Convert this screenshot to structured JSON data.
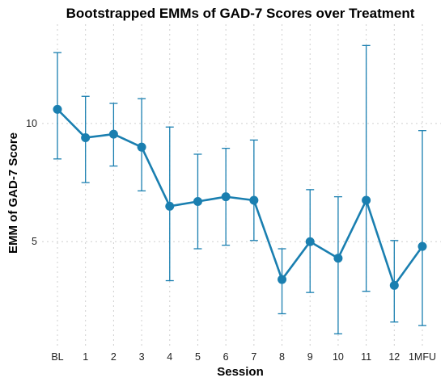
{
  "chart_data": {
    "type": "line",
    "title": "Bootstrapped EMMs of GAD-7 Scores over Treatment",
    "xlabel": "Session",
    "ylabel": "EMM of GAD-7 Score",
    "categories": [
      "BL",
      "1",
      "2",
      "3",
      "4",
      "5",
      "6",
      "7",
      "8",
      "9",
      "10",
      "11",
      "12",
      "1MFU"
    ],
    "values": [
      10.6,
      9.4,
      9.55,
      9.0,
      6.5,
      6.7,
      6.9,
      6.75,
      3.4,
      5.0,
      4.3,
      6.75,
      3.15,
      4.8
    ],
    "error_lower": [
      8.5,
      7.5,
      8.2,
      7.15,
      3.35,
      4.7,
      4.85,
      5.05,
      1.95,
      2.85,
      1.1,
      2.9,
      1.6,
      1.45
    ],
    "error_upper": [
      13.0,
      11.15,
      10.85,
      11.05,
      9.85,
      8.7,
      8.95,
      9.3,
      4.7,
      7.2,
      6.9,
      13.3,
      5.05,
      9.7
    ],
    "yticks": [
      5,
      10
    ],
    "ylim": [
      0.6,
      14.2
    ],
    "grid": true,
    "color": "#1a7fb0"
  }
}
